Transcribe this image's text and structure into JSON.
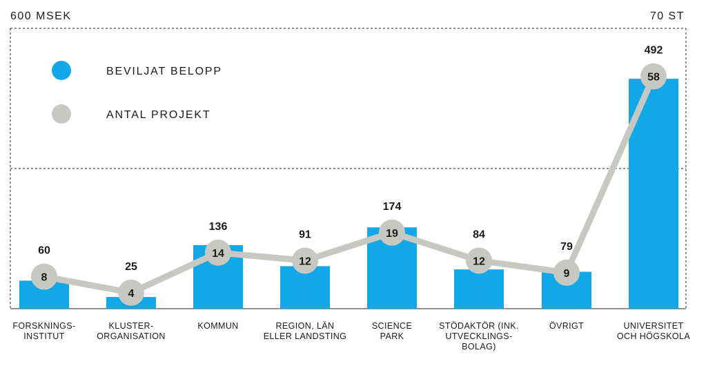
{
  "chart_data": {
    "type": "bar",
    "left_axis_unit": "600 MSEK",
    "right_axis_unit": "70 ST",
    "left_axis_max": 600,
    "right_axis_max": 70,
    "grid": "dashed frame with one mid-line",
    "legend_placement": "top-left",
    "categories": [
      [
        "FORSKNINGS-",
        "INSTITUT"
      ],
      [
        "KLUSTER-",
        "ORGANISATION"
      ],
      [
        "KOMMUN"
      ],
      [
        "REGION, LÄN",
        "ELLER LANDSTING"
      ],
      [
        "SCIENCE",
        "PARK"
      ],
      [
        "STÖDAKTÖR (INK.",
        "UTVECKLINGS-",
        "BOLAG)"
      ],
      [
        "ÖVRIGT"
      ],
      [
        "UNIVERSITET",
        "OCH HÖGSKOLA"
      ]
    ],
    "series": [
      {
        "name": "BEVILJAT BELOPP",
        "type": "bar",
        "axis": "left",
        "color": "#12a8e8",
        "values": [
          60,
          25,
          136,
          91,
          174,
          84,
          79,
          492
        ]
      },
      {
        "name": "ANTAL PROJEKT",
        "type": "line",
        "axis": "right",
        "color": "#c8c8c2",
        "values": [
          8,
          4,
          14,
          12,
          19,
          12,
          9,
          58
        ]
      }
    ]
  }
}
